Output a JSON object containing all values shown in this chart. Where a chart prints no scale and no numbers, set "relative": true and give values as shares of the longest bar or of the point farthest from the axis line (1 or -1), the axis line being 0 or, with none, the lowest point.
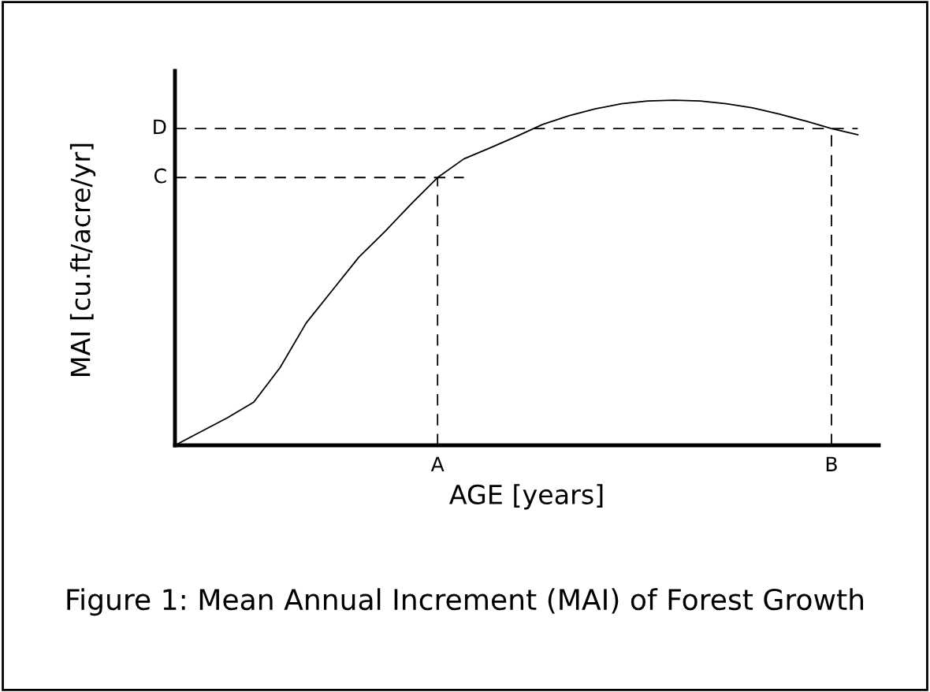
{
  "chart_data": {
    "type": "line",
    "relative": true,
    "title": "Figure 1: Mean Annual Increment (MAI) of Forest Growth",
    "xlabel": "AGE [years]",
    "ylabel": "MAI [cu.ft/acre/yr]",
    "color": "#000000",
    "line_style": "solid",
    "tick_labels": "x",
    "categories": [
      null,
      null,
      null,
      null,
      null,
      null,
      null,
      null,
      null,
      null,
      "A",
      null,
      null,
      null,
      null,
      null,
      null,
      null,
      null,
      null,
      null,
      null,
      null,
      null,
      null,
      "B",
      null
    ],
    "values": [
      0,
      0.04,
      0.08,
      0.125,
      0.225,
      0.355,
      0.45,
      0.545,
      0.62,
      0.7,
      0.776,
      0.83,
      0.862,
      0.895,
      0.93,
      0.955,
      0.975,
      0.99,
      0.998,
      1.0,
      0.998,
      0.99,
      0.978,
      0.96,
      0.94,
      0.918,
      0.9
    ],
    "ref_lines": [
      {
        "axis": "y",
        "value": 0.776,
        "label": "C",
        "line_style": "dashed"
      },
      {
        "axis": "y",
        "value": 0.918,
        "label": "D",
        "line_style": "dashed"
      },
      {
        "axis": "x",
        "value": "A",
        "line_style": "dashed"
      },
      {
        "axis": "x",
        "value": "B",
        "line_style": "dashed"
      }
    ]
  }
}
